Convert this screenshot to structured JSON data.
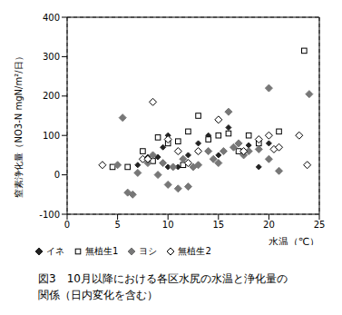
{
  "chart_data": {
    "type": "scatter",
    "title": "図3　10月以降における各区水尻の水温と浄化量の関係（日内変化を含む）",
    "x_label": "水温（℃）",
    "y_label": "窒素浄化量（NO3-N mgN/m²/日）",
    "xlim": [
      0,
      25
    ],
    "xticks": [
      0,
      5,
      10,
      15,
      20,
      25
    ],
    "ylim": [
      -100,
      400
    ],
    "yticks": [
      -100,
      0,
      100,
      200,
      300,
      400
    ],
    "grid": true,
    "legend": "bottom",
    "series": [
      {
        "name": "イネ",
        "color": "#222222",
        "marker": "diamond",
        "x": [
          7,
          8,
          9,
          9.5,
          10,
          10,
          11,
          12,
          13,
          14,
          15,
          16,
          18,
          19,
          20
        ],
        "values": [
          25,
          45,
          45,
          70,
          100,
          20,
          20,
          50,
          80,
          100,
          50,
          120,
          75,
          20,
          80
        ]
      },
      {
        "name": "無植生1",
        "color": "#000000",
        "marker": "square_open",
        "x": [
          4.5,
          6,
          7.5,
          8.5,
          9,
          10,
          11,
          11.5,
          12,
          13,
          14,
          15,
          16,
          17,
          18,
          19,
          21,
          23.5
        ],
        "values": [
          20,
          20,
          60,
          35,
          95,
          80,
          85,
          25,
          110,
          150,
          90,
          100,
          105,
          60,
          100,
          80,
          110,
          315
        ]
      },
      {
        "name": "ヨシ",
        "color": "#777777",
        "marker": "diamond",
        "x": [
          5,
          5.5,
          6,
          6.5,
          7,
          8,
          8.5,
          9,
          9.5,
          10,
          10.5,
          11,
          11.5,
          12,
          12.5,
          13,
          14,
          14.5,
          15,
          15.5,
          16,
          16.5,
          17,
          17.5,
          18,
          19,
          20,
          20,
          21,
          24
        ],
        "values": [
          25,
          145,
          -45,
          -50,
          5,
          30,
          50,
          0,
          30,
          -25,
          20,
          -35,
          40,
          -30,
          20,
          25,
          60,
          40,
          30,
          60,
          160,
          70,
          80,
          50,
          60,
          65,
          220,
          40,
          10,
          205
        ]
      },
      {
        "name": "無植生2",
        "color": "#000000",
        "marker": "diamond_open",
        "x": [
          3.5,
          7.5,
          8,
          8.5,
          10,
          11,
          12,
          13,
          15,
          17.5,
          19,
          20,
          20.5,
          21,
          23,
          23.8
        ],
        "values": [
          25,
          40,
          40,
          185,
          90,
          60,
          30,
          60,
          140,
          60,
          90,
          100,
          65,
          70,
          100,
          25
        ]
      }
    ]
  }
}
